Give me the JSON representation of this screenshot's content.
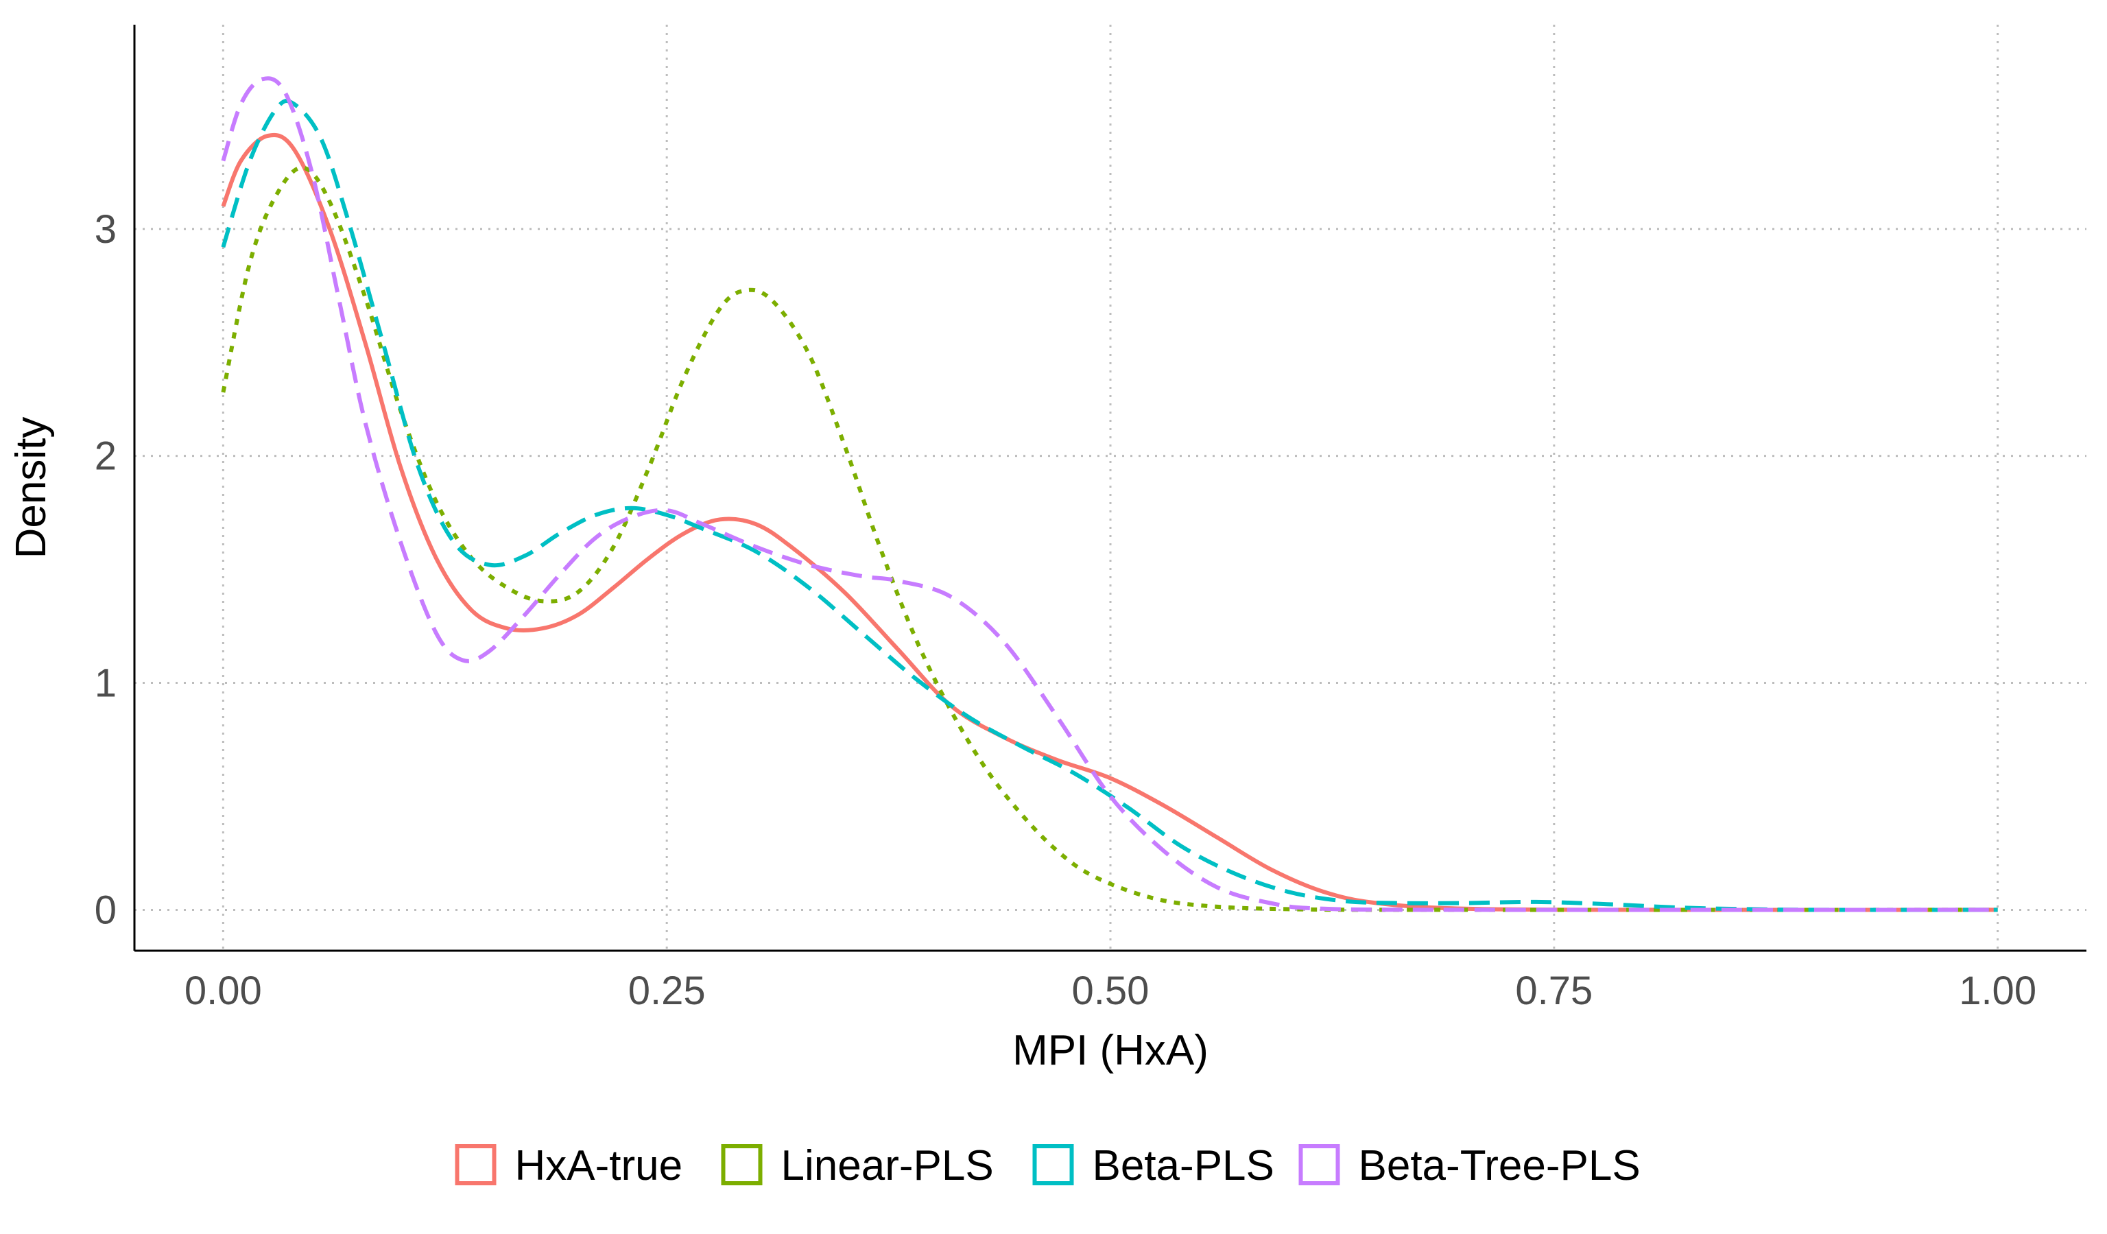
{
  "chart_data": {
    "type": "line",
    "title": "",
    "xlabel": "MPI (HxA)",
    "ylabel": "Density",
    "xlim": [
      -0.05,
      1.05
    ],
    "ylim": [
      -0.18,
      3.9
    ],
    "x_ticks": [
      0,
      0.25,
      0.5,
      0.75,
      1
    ],
    "x_tick_labels": [
      "0.00",
      "0.25",
      "0.50",
      "0.75",
      "1.00"
    ],
    "y_ticks": [
      0,
      1,
      2,
      3
    ],
    "y_tick_labels": [
      "0",
      "1",
      "2",
      "3"
    ],
    "grid": "major, dotted grey",
    "legend_position": "bottom",
    "series": [
      {
        "name": "HxA-true",
        "color": "#F8766D",
        "line_style": "solid",
        "points": [
          [
            0,
            3.1
          ],
          [
            0.01,
            3.3
          ],
          [
            0.025,
            3.41
          ],
          [
            0.04,
            3.35
          ],
          [
            0.06,
            3.0
          ],
          [
            0.08,
            2.5
          ],
          [
            0.1,
            1.95
          ],
          [
            0.12,
            1.55
          ],
          [
            0.14,
            1.32
          ],
          [
            0.16,
            1.24
          ],
          [
            0.18,
            1.24
          ],
          [
            0.2,
            1.3
          ],
          [
            0.22,
            1.42
          ],
          [
            0.24,
            1.55
          ],
          [
            0.26,
            1.66
          ],
          [
            0.28,
            1.72
          ],
          [
            0.3,
            1.7
          ],
          [
            0.32,
            1.6
          ],
          [
            0.35,
            1.4
          ],
          [
            0.38,
            1.15
          ],
          [
            0.41,
            0.9
          ],
          [
            0.44,
            0.76
          ],
          [
            0.47,
            0.66
          ],
          [
            0.5,
            0.58
          ],
          [
            0.53,
            0.46
          ],
          [
            0.56,
            0.32
          ],
          [
            0.59,
            0.18
          ],
          [
            0.62,
            0.08
          ],
          [
            0.65,
            0.03
          ],
          [
            0.7,
            0.005
          ],
          [
            0.8,
            0.0
          ],
          [
            1.0,
            0.0
          ]
        ]
      },
      {
        "name": "Linear-PLS",
        "color": "#7CAE00",
        "line_style": "dotted",
        "points": [
          [
            0,
            2.28
          ],
          [
            0.015,
            2.85
          ],
          [
            0.03,
            3.15
          ],
          [
            0.045,
            3.27
          ],
          [
            0.06,
            3.12
          ],
          [
            0.08,
            2.7
          ],
          [
            0.1,
            2.2
          ],
          [
            0.12,
            1.8
          ],
          [
            0.14,
            1.55
          ],
          [
            0.16,
            1.42
          ],
          [
            0.18,
            1.36
          ],
          [
            0.2,
            1.4
          ],
          [
            0.22,
            1.6
          ],
          [
            0.24,
            1.95
          ],
          [
            0.26,
            2.35
          ],
          [
            0.28,
            2.65
          ],
          [
            0.295,
            2.73
          ],
          [
            0.31,
            2.68
          ],
          [
            0.33,
            2.45
          ],
          [
            0.35,
            2.05
          ],
          [
            0.37,
            1.6
          ],
          [
            0.39,
            1.2
          ],
          [
            0.41,
            0.88
          ],
          [
            0.43,
            0.62
          ],
          [
            0.45,
            0.42
          ],
          [
            0.47,
            0.26
          ],
          [
            0.49,
            0.15
          ],
          [
            0.52,
            0.06
          ],
          [
            0.55,
            0.02
          ],
          [
            0.6,
            0.003
          ],
          [
            0.7,
            0.0
          ],
          [
            1.0,
            0.0
          ]
        ]
      },
      {
        "name": "Beta-PLS",
        "color": "#00BFC4",
        "line_style": "dashed",
        "points": [
          [
            0,
            2.92
          ],
          [
            0.015,
            3.3
          ],
          [
            0.03,
            3.53
          ],
          [
            0.04,
            3.55
          ],
          [
            0.055,
            3.4
          ],
          [
            0.07,
            3.05
          ],
          [
            0.09,
            2.5
          ],
          [
            0.11,
            1.95
          ],
          [
            0.13,
            1.62
          ],
          [
            0.15,
            1.52
          ],
          [
            0.17,
            1.56
          ],
          [
            0.19,
            1.66
          ],
          [
            0.21,
            1.74
          ],
          [
            0.23,
            1.77
          ],
          [
            0.25,
            1.74
          ],
          [
            0.27,
            1.68
          ],
          [
            0.3,
            1.58
          ],
          [
            0.33,
            1.42
          ],
          [
            0.36,
            1.22
          ],
          [
            0.39,
            1.02
          ],
          [
            0.42,
            0.85
          ],
          [
            0.45,
            0.72
          ],
          [
            0.48,
            0.6
          ],
          [
            0.51,
            0.45
          ],
          [
            0.54,
            0.28
          ],
          [
            0.57,
            0.16
          ],
          [
            0.6,
            0.08
          ],
          [
            0.63,
            0.04
          ],
          [
            0.66,
            0.03
          ],
          [
            0.7,
            0.03
          ],
          [
            0.74,
            0.035
          ],
          [
            0.78,
            0.025
          ],
          [
            0.82,
            0.01
          ],
          [
            0.86,
            0.003
          ],
          [
            0.9,
            0.0
          ],
          [
            1.0,
            0.0
          ]
        ]
      },
      {
        "name": "Beta-Tree-PLS",
        "color": "#C77CFF",
        "line_style": "dashed",
        "points": [
          [
            0,
            3.3
          ],
          [
            0.01,
            3.55
          ],
          [
            0.022,
            3.66
          ],
          [
            0.035,
            3.6
          ],
          [
            0.05,
            3.25
          ],
          [
            0.065,
            2.7
          ],
          [
            0.08,
            2.15
          ],
          [
            0.1,
            1.62
          ],
          [
            0.12,
            1.22
          ],
          [
            0.135,
            1.1
          ],
          [
            0.15,
            1.14
          ],
          [
            0.17,
            1.3
          ],
          [
            0.19,
            1.48
          ],
          [
            0.21,
            1.64
          ],
          [
            0.23,
            1.73
          ],
          [
            0.25,
            1.76
          ],
          [
            0.27,
            1.7
          ],
          [
            0.3,
            1.6
          ],
          [
            0.33,
            1.52
          ],
          [
            0.36,
            1.47
          ],
          [
            0.38,
            1.45
          ],
          [
            0.41,
            1.38
          ],
          [
            0.44,
            1.18
          ],
          [
            0.47,
            0.85
          ],
          [
            0.5,
            0.5
          ],
          [
            0.53,
            0.26
          ],
          [
            0.56,
            0.1
          ],
          [
            0.59,
            0.03
          ],
          [
            0.62,
            0.005
          ],
          [
            0.7,
            0.0
          ],
          [
            1.0,
            0.0
          ]
        ]
      }
    ]
  }
}
